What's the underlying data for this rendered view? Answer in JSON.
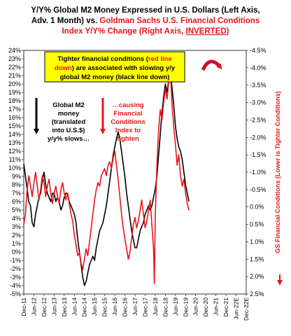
{
  "chart_data": {
    "type": "line",
    "title_parts": [
      {
        "text": "Y/Y% Global M2 Money Expressed in U.S. Dollars (Left Axis,",
        "color": "#000000"
      },
      {
        "text": "Adv. 1 Month) vs. ",
        "color": "#000000"
      },
      {
        "text": "Goldman Sachs U.S. Financial Conditions",
        "color": "#e8141b"
      },
      {
        "text": "Index Y/Y% Change (Right Axis, ",
        "color": "#e8141b"
      },
      {
        "text": "INVERTED",
        "color": "#e8141b"
      },
      {
        "text": ")",
        "color": "#e8141b"
      }
    ],
    "y_left": {
      "ylim": [
        -5,
        24
      ],
      "ticks": [
        "24%",
        "23%",
        "22%",
        "21%",
        "20%",
        "19%",
        "18%",
        "17%",
        "16%",
        "15%",
        "14%",
        "13%",
        "12%",
        "11%",
        "10%",
        "9%",
        "8%",
        "7%",
        "6%",
        "5%",
        "4%",
        "3%",
        "2%",
        "1%",
        "0%",
        "-1%",
        "-2%",
        "-3%",
        "-4%",
        "-5%"
      ]
    },
    "y_right": {
      "label": "GS Financial Conditions (Lower is Tighter Conditions)",
      "inverted": true,
      "ylim": [
        -4.5,
        2.5
      ],
      "ticks": [
        "-4.5%",
        "-4.0%",
        "-3.5%",
        "-3.0%",
        "-2.5%",
        "-2.0%",
        "-1.5%",
        "-1.0%",
        "-0.5%",
        "0.0%",
        "0.5%",
        "1.0%",
        "1.5%",
        "2.0%",
        "2.5%"
      ]
    },
    "x_ticks": [
      "Dec-11",
      "Jun-12",
      "Dec-12",
      "Jun-13",
      "Dec-13",
      "Jun-14",
      "Dec-14",
      "Jun-15",
      "Dec-15",
      "Jun-16",
      "Dec-16",
      "Jun-17",
      "Dec-17",
      "Jun-18",
      "Dec-18",
      "Jun-19",
      "Dec-19",
      "Jun-20",
      "Dec-20",
      "Jun-21",
      "Dec-21",
      "Jun-22E",
      "Dec-22E"
    ],
    "annotations": {
      "box_lines": [
        [
          {
            "text": "Tighter financial conditions (",
            "color": "#000000"
          },
          {
            "text": "red line",
            "color": "#e8141b"
          }
        ],
        [
          {
            "text": "down",
            "color": "#e8141b"
          },
          {
            "text": ") are associated with slowing y/y",
            "color": "#000000"
          }
        ],
        [
          {
            "text": "global M2 money (black line down)",
            "color": "#000000"
          }
        ]
      ],
      "black_note": [
        "Global M2",
        "money",
        "(translated",
        "into U.S.$)",
        "y/y% slows…"
      ],
      "red_note": [
        "…causing",
        "Financial",
        "Conditions",
        "Index to",
        "tighten"
      ]
    },
    "series": [
      {
        "name": "Global M2 (Y/Y%, USD)",
        "axis": "left",
        "color": "#000000",
        "points": [
          [
            0,
            10.5
          ],
          [
            1,
            9.0
          ],
          [
            2,
            7.5
          ],
          [
            3,
            6.0
          ],
          [
            4,
            5.5
          ],
          [
            5,
            3.5
          ],
          [
            6,
            3.0
          ],
          [
            7,
            4.5
          ],
          [
            8,
            5.5
          ],
          [
            9,
            6.5
          ],
          [
            10,
            7.0
          ],
          [
            11,
            8.5
          ],
          [
            12,
            9.5
          ],
          [
            13,
            8.0
          ],
          [
            14,
            7.0
          ],
          [
            15,
            6.5
          ],
          [
            16,
            6.0
          ],
          [
            17,
            7.0
          ],
          [
            18,
            7.0
          ],
          [
            19,
            6.0
          ],
          [
            20,
            6.5
          ],
          [
            21,
            6.0
          ],
          [
            22,
            5.0
          ],
          [
            23,
            5.5
          ],
          [
            24,
            6.5
          ],
          [
            25,
            7.0
          ],
          [
            26,
            7.0
          ],
          [
            27,
            6.0
          ],
          [
            28,
            5.5
          ],
          [
            29,
            5.0
          ],
          [
            30,
            4.5
          ],
          [
            31,
            3.5
          ],
          [
            32,
            1.5
          ],
          [
            33,
            0.0
          ],
          [
            34,
            -1.5
          ],
          [
            35,
            -3.0
          ],
          [
            36,
            -4.0
          ],
          [
            37,
            -3.5
          ],
          [
            38,
            -2.5
          ],
          [
            39,
            -1.5
          ],
          [
            40,
            -1.0
          ],
          [
            41,
            -0.5
          ],
          [
            42,
            -1.0
          ],
          [
            43,
            0.5
          ],
          [
            44,
            1.5
          ],
          [
            45,
            2.5
          ],
          [
            46,
            3.0
          ],
          [
            47,
            3.5
          ],
          [
            48,
            4.5
          ],
          [
            49,
            5.5
          ],
          [
            50,
            7.0
          ],
          [
            51,
            8.5
          ],
          [
            52,
            10.0
          ],
          [
            53,
            11.5
          ],
          [
            54,
            12.5
          ],
          [
            55,
            13.5
          ],
          [
            56,
            14.3
          ],
          [
            57,
            13.5
          ],
          [
            58,
            12.0
          ],
          [
            59,
            10.5
          ],
          [
            60,
            9.0
          ],
          [
            61,
            7.0
          ],
          [
            62,
            5.5
          ],
          [
            63,
            4.0
          ],
          [
            64,
            2.5
          ],
          [
            65,
            1.5
          ],
          [
            66,
            0.5
          ],
          [
            67,
            0.5
          ],
          [
            68,
            1.5
          ],
          [
            69,
            2.5
          ],
          [
            70,
            3.0
          ],
          [
            71,
            3.5
          ],
          [
            72,
            4.5
          ],
          [
            73,
            5.0
          ],
          [
            74,
            5.5
          ],
          [
            75,
            5.0
          ],
          [
            76,
            5.5
          ],
          [
            77,
            6.5
          ],
          [
            78,
            7.5
          ],
          [
            79,
            9.0
          ],
          [
            80,
            11.5
          ],
          [
            81,
            14.0
          ],
          [
            82,
            16.5
          ],
          [
            83,
            18.5
          ],
          [
            84,
            20.0
          ],
          [
            85,
            19.0
          ],
          [
            86,
            20.5
          ],
          [
            87,
            21.5
          ],
          [
            88,
            19.5
          ],
          [
            89,
            17.5
          ],
          [
            90,
            15.0
          ],
          [
            91,
            13.5
          ],
          [
            92,
            12.5
          ],
          [
            93,
            12.0
          ],
          [
            94,
            11.0
          ],
          [
            95,
            9.5
          ],
          [
            96,
            8.0
          ],
          [
            97,
            7.0
          ],
          [
            98,
            6.0
          ]
        ]
      },
      {
        "name": "GS U.S. Financial Conditions Index (Y/Y% change, inverted)",
        "axis": "right",
        "color": "#e8141b",
        "points": [
          [
            0,
            0.5
          ],
          [
            1,
            0.2
          ],
          [
            2,
            -0.5
          ],
          [
            3,
            -0.9
          ],
          [
            4,
            -0.6
          ],
          [
            5,
            -0.3
          ],
          [
            6,
            -0.7
          ],
          [
            7,
            -1.0
          ],
          [
            8,
            -0.6
          ],
          [
            9,
            -0.2
          ],
          [
            10,
            -0.5
          ],
          [
            11,
            -0.9
          ],
          [
            12,
            -0.7
          ],
          [
            13,
            -0.3
          ],
          [
            14,
            -0.6
          ],
          [
            15,
            -0.8
          ],
          [
            16,
            -0.4
          ],
          [
            17,
            -0.1
          ],
          [
            18,
            -0.4
          ],
          [
            19,
            -0.6
          ],
          [
            20,
            -0.3
          ],
          [
            21,
            -0.1
          ],
          [
            22,
            -0.5
          ],
          [
            23,
            -0.7
          ],
          [
            24,
            -0.4
          ],
          [
            25,
            -0.2
          ],
          [
            26,
            -0.4
          ],
          [
            27,
            -0.1
          ],
          [
            28,
            0.2
          ],
          [
            29,
            0.4
          ],
          [
            30,
            0.8
          ],
          [
            31,
            1.1
          ],
          [
            32,
            1.4
          ],
          [
            33,
            1.3
          ],
          [
            34,
            1.6
          ],
          [
            35,
            1.8
          ],
          [
            36,
            1.5
          ],
          [
            37,
            1.2
          ],
          [
            38,
            1.4
          ],
          [
            39,
            1.0
          ],
          [
            40,
            0.6
          ],
          [
            41,
            0.2
          ],
          [
            42,
            -0.2
          ],
          [
            43,
            -0.5
          ],
          [
            44,
            -0.7
          ],
          [
            45,
            -0.6
          ],
          [
            46,
            -0.9
          ],
          [
            47,
            -1.0
          ],
          [
            48,
            -1.1
          ],
          [
            49,
            -0.9
          ],
          [
            50,
            -1.2
          ],
          [
            51,
            -1.3
          ],
          [
            52,
            -1.1
          ],
          [
            53,
            -1.4
          ],
          [
            54,
            -1.6
          ],
          [
            55,
            -1.2
          ],
          [
            56,
            -0.8
          ],
          [
            57,
            -0.3
          ],
          [
            58,
            0.2
          ],
          [
            59,
            0.6
          ],
          [
            60,
            0.9
          ],
          [
            61,
            1.2
          ],
          [
            62,
            1.5
          ],
          [
            63,
            1.3
          ],
          [
            64,
            0.9
          ],
          [
            65,
            0.5
          ],
          [
            66,
            0.3
          ],
          [
            67,
            0.6
          ],
          [
            68,
            0.4
          ],
          [
            69,
            0.1
          ],
          [
            70,
            -0.2
          ],
          [
            71,
            0.2
          ],
          [
            72,
            0.6
          ],
          [
            73,
            0.4
          ],
          [
            74,
            0.1
          ],
          [
            75,
            -0.2
          ],
          [
            76,
            0.5
          ],
          [
            77,
            1.2
          ],
          [
            77.5,
            2.2
          ],
          [
            78,
            0.3
          ],
          [
            79,
            -1.2
          ],
          [
            80,
            -2.2
          ],
          [
            81,
            -2.8
          ],
          [
            82,
            -2.5
          ],
          [
            83,
            -3.0
          ],
          [
            84,
            -3.4
          ],
          [
            85,
            -3.1
          ],
          [
            86,
            -3.6
          ],
          [
            87,
            -3.9
          ],
          [
            88,
            -2.9
          ],
          [
            89,
            -2.3
          ],
          [
            90,
            -1.8
          ],
          [
            91,
            -1.2
          ],
          [
            92,
            -1.5
          ],
          [
            93,
            -0.9
          ],
          [
            94,
            -0.6
          ],
          [
            95,
            -0.8
          ],
          [
            96,
            -0.4
          ],
          [
            97,
            -0.1
          ],
          [
            98,
            0.1
          ]
        ]
      }
    ]
  }
}
